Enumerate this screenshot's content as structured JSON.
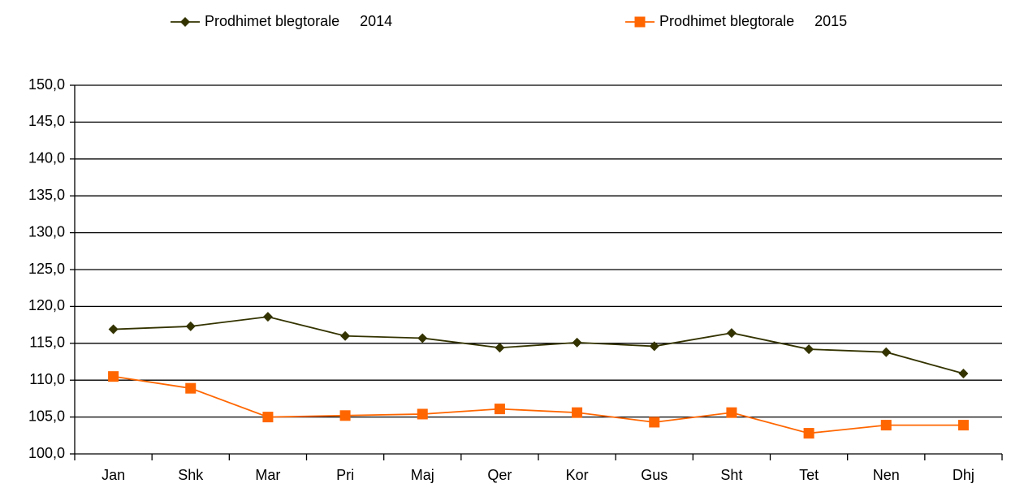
{
  "chart_data": {
    "type": "line",
    "categories": [
      "Jan",
      "Shk",
      "Mar",
      "Pri",
      "Maj",
      "Qer",
      "Kor",
      "Gus",
      "Sht",
      "Tet",
      "Nen",
      "Dhj"
    ],
    "series": [
      {
        "name": "Prodhimet blegtorale     2014",
        "color": "#333300",
        "marker": "diamond",
        "values": [
          116.9,
          117.3,
          118.6,
          116.0,
          115.7,
          114.4,
          115.1,
          114.6,
          116.4,
          114.2,
          113.8,
          110.9
        ]
      },
      {
        "name": "Prodhimet blegtorale     2015",
        "color": "#ff6600",
        "marker": "square",
        "values": [
          110.5,
          108.9,
          105.0,
          105.2,
          105.4,
          106.1,
          105.6,
          104.3,
          105.6,
          102.8,
          103.9,
          103.9
        ]
      }
    ],
    "ylim": [
      100,
      150
    ],
    "yticks": [
      {
        "value": 100,
        "label": "100,0"
      },
      {
        "value": 105,
        "label": "105,0"
      },
      {
        "value": 110,
        "label": "110,0"
      },
      {
        "value": 115,
        "label": "115,0"
      },
      {
        "value": 120,
        "label": "120,0"
      },
      {
        "value": 125,
        "label": "125,0"
      },
      {
        "value": 130,
        "label": "130,0"
      },
      {
        "value": 135,
        "label": "135,0"
      },
      {
        "value": 140,
        "label": "140,0"
      },
      {
        "value": 145,
        "label": "145,0"
      },
      {
        "value": 150,
        "label": "150,0"
      }
    ],
    "grid": true,
    "legend": "top"
  }
}
